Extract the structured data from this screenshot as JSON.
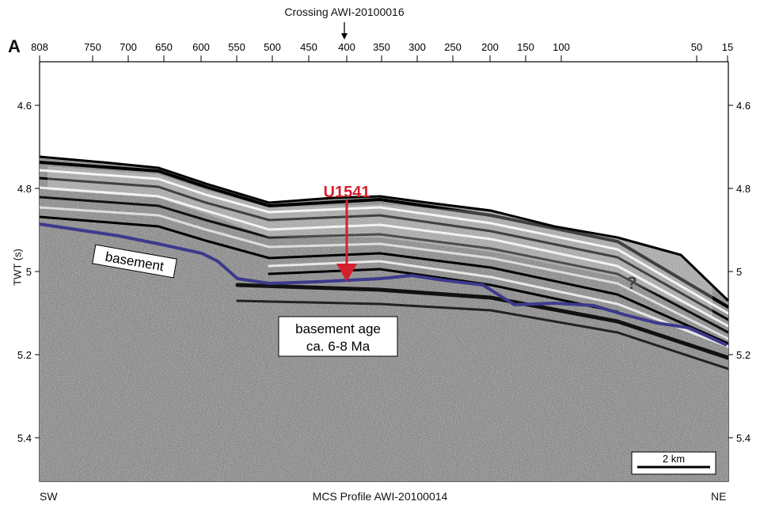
{
  "figure": {
    "panel_letter": "A",
    "crossing_label": "Crossing AWI-20100016",
    "profile_title": "MCS Profile AWI-20100014",
    "direction_left": "SW",
    "direction_right": "NE",
    "y_axis_label": "TWT (s)",
    "site_label": "U1541",
    "basement_label": "basement",
    "basement_age_line1": "basement age",
    "basement_age_line2": "ca. 6-8 Ma",
    "uncertain_marker": "?",
    "scale_bar_label": "2 km"
  },
  "axes": {
    "top_ticks": [
      "808",
      "750",
      "700",
      "650",
      "600",
      "550",
      "500",
      "450",
      "400",
      "350",
      "300",
      "250",
      "200",
      "150",
      "100",
      "50",
      "15"
    ],
    "left_ticks": [
      "4.6",
      "4.8",
      "5",
      "5.2",
      "5.4"
    ],
    "right_ticks": [
      "4.6",
      "4.8",
      "5",
      "5.2",
      "5.4"
    ]
  },
  "colors": {
    "basement_line": "#3d3a8c",
    "site_marker": "#d41f2d",
    "seismic_dark": "#111111",
    "seismic_light": "#e6e6e6"
  }
}
